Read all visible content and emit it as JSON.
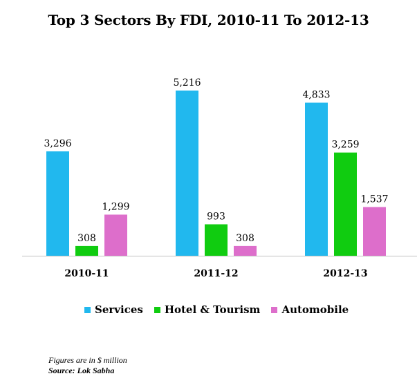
{
  "chart_data": {
    "type": "bar",
    "title": "Top 3 Sectors By FDI, 2010-11 To 2012-13",
    "categories": [
      "2010-11",
      "2011-12",
      "2012-13"
    ],
    "series": [
      {
        "name": "Services",
        "color": "#21b8ee",
        "values": [
          3296,
          5216,
          4833
        ],
        "labels": [
          "3,296",
          "5,216",
          "4,833"
        ]
      },
      {
        "name": "Hotel & Tourism",
        "color": "#10cc10",
        "values": [
          308,
          993,
          3259
        ],
        "labels": [
          "308",
          "993",
          "3,259"
        ]
      },
      {
        "name": "Automobile",
        "color": "#dd6ecb",
        "values": [
          1299,
          308,
          1537
        ],
        "labels": [
          "1,299",
          "308",
          "1,537"
        ]
      }
    ],
    "ylim": [
      0,
      5216
    ],
    "grid": false,
    "legend_position": "bottom"
  },
  "footnotes": {
    "units": "Figures are in $ million",
    "source": "Source: Lok Sabha"
  }
}
